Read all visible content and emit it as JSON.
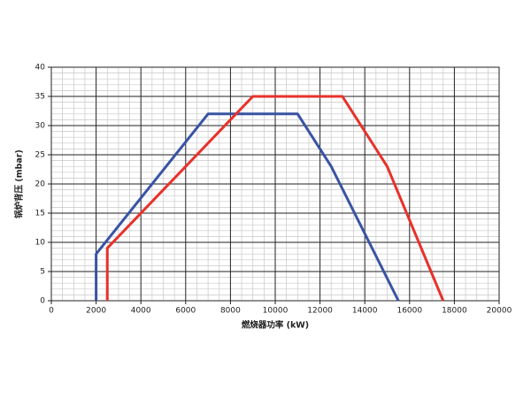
{
  "chart_data": {
    "type": "line",
    "xlabel": "燃烧器功率 (kW)",
    "ylabel": "锅炉背压 (mbar)",
    "xlim": [
      0,
      20000
    ],
    "xticks": [
      0,
      2000,
      4000,
      6000,
      8000,
      10000,
      12000,
      14000,
      16000,
      18000,
      20000
    ],
    "ylim": [
      0,
      40
    ],
    "yticks": [
      0,
      5,
      10,
      15,
      20,
      25,
      30,
      35,
      40
    ],
    "grid": true,
    "minor_grid": true,
    "series": [
      {
        "color": "#3953a4",
        "x": [
          2000,
          2000,
          7000,
          11000,
          12500,
          15500
        ],
        "values": [
          0,
          8,
          32,
          32,
          23,
          0
        ]
      },
      {
        "color": "#e8312a",
        "x": [
          2500,
          2500,
          9000,
          13000,
          15000,
          17500
        ],
        "values": [
          0,
          9,
          35,
          35,
          23,
          0
        ]
      }
    ]
  }
}
